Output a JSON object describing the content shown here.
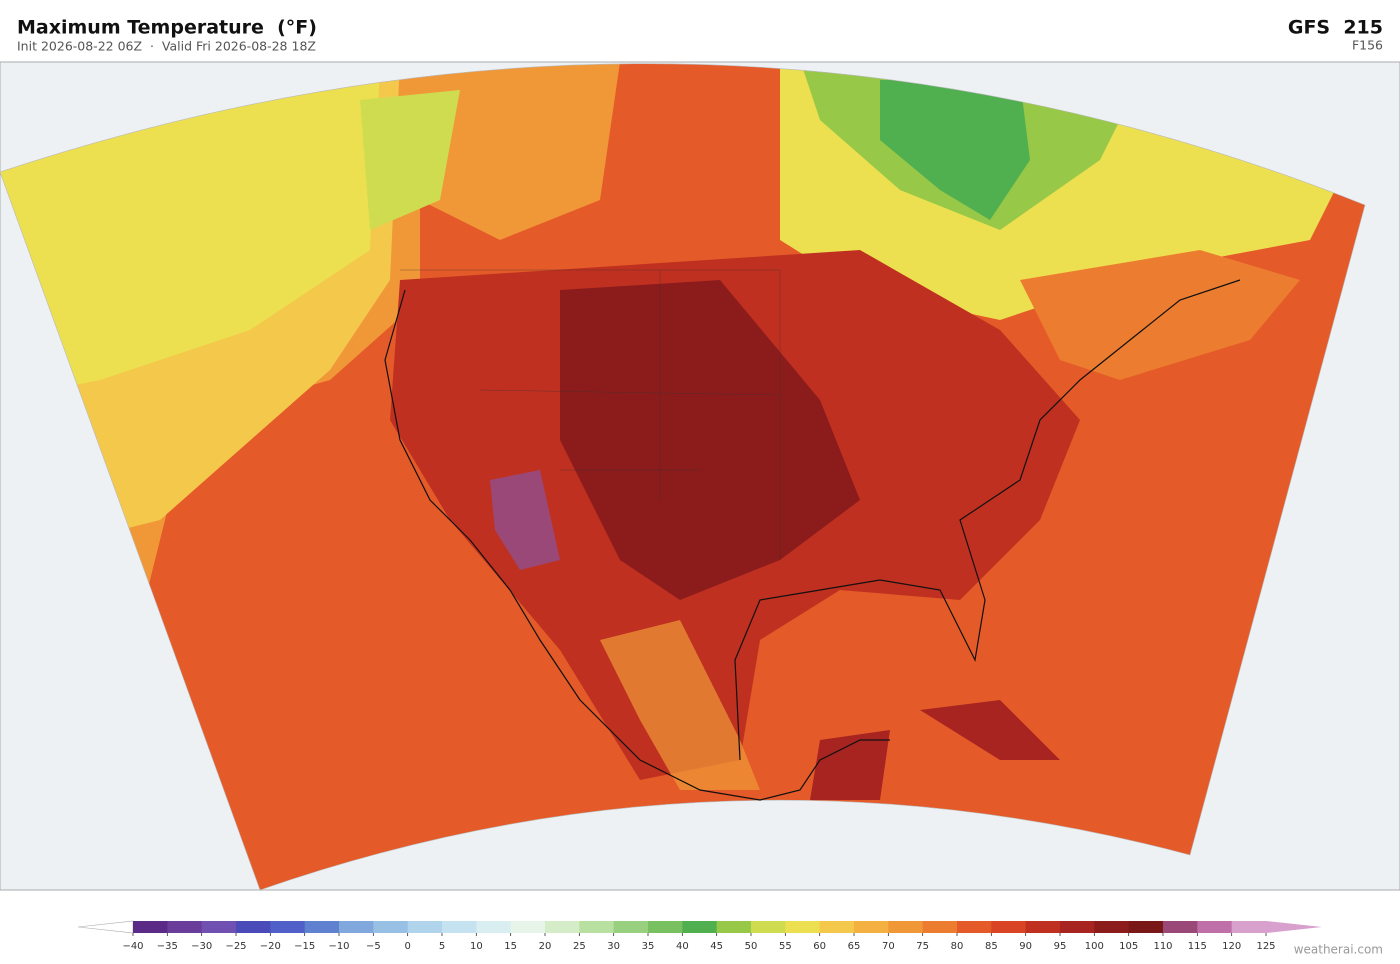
{
  "header": {
    "title": "Maximum Temperature  (°F)",
    "subtitle": "Init 2026-08-22 06Z  ·  Valid Fri 2026-08-28 18Z",
    "model": "GFS  215",
    "forecast_hour": "F156"
  },
  "colorbar": {
    "ticks": [
      {
        "value": -40,
        "label": "−40"
      },
      {
        "value": -35,
        "label": "−35"
      },
      {
        "value": -30,
        "label": "−30"
      },
      {
        "value": -25,
        "label": "−25"
      },
      {
        "value": -20,
        "label": "−20"
      },
      {
        "value": -15,
        "label": "−15"
      },
      {
        "value": -10,
        "label": "−10"
      },
      {
        "value": -5,
        "label": "−5"
      },
      0,
      5,
      10,
      15,
      20,
      25,
      30,
      35,
      40,
      45,
      50,
      55,
      60,
      65,
      70,
      75,
      80,
      85,
      90,
      95,
      100,
      105,
      110,
      115,
      120,
      125
    ],
    "colors": [
      "#5b2a86",
      "#6a3d9a",
      "#7050b0",
      "#4a4ab8",
      "#5060c8",
      "#6080d0",
      "#80a8dc",
      "#98c0e4",
      "#b0d4ec",
      "#c4e2f0",
      "#d8eef0",
      "#e6f4ea",
      "#d4ecc8",
      "#b8e0a0",
      "#98d080",
      "#78c060",
      "#50b050",
      "#98c848",
      "#d0dc50",
      "#ece050",
      "#f4c84a",
      "#f4b040",
      "#f09838",
      "#ec7c30",
      "#e45a28",
      "#d84424",
      "#c03020",
      "#a82420",
      "#8c1c1c",
      "#7a1818",
      "#9a4878",
      "#c070a8",
      "#d8a0cc"
    ],
    "under_color": "#ffffff",
    "over_color": "#d8a0cc"
  },
  "watermark": "weatherai.com"
}
